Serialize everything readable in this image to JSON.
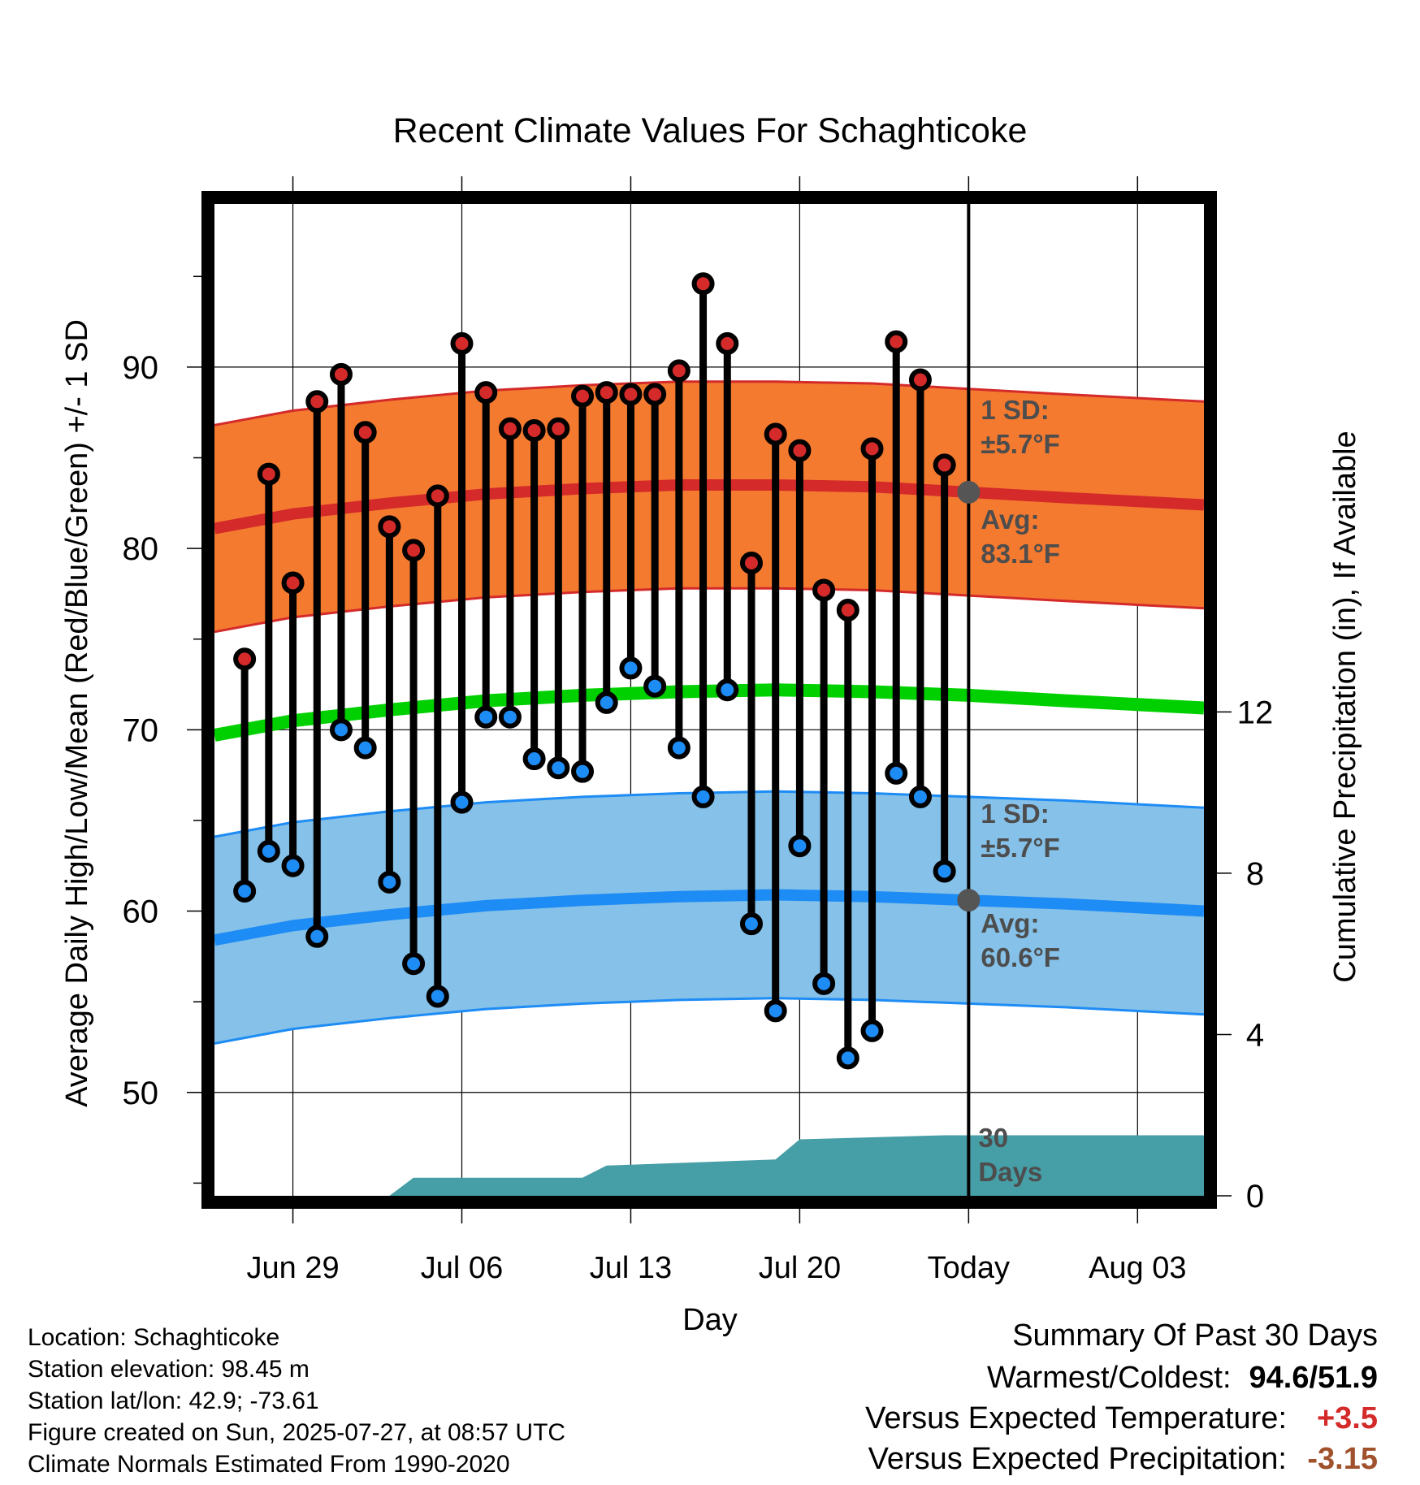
{
  "chart_data": {
    "type": "line",
    "title": "Recent Climate Values For Schaghticoke",
    "xlabel": "Day",
    "ylabel": "Average Daily High/Low/Mean (Red/Blue/Green) +/- 1 SD",
    "y2label": "Cumulative Precipitation (in), If Available",
    "ylim": [
      44.3,
      99
    ],
    "yticks": [
      50,
      60,
      70,
      80,
      90
    ],
    "y2lim": [
      0,
      24.6
    ],
    "y2ticks": [
      0,
      4,
      8,
      12
    ],
    "x_ticks": [
      {
        "date": "2025-06-29",
        "label": "Jun 29"
      },
      {
        "date": "2025-07-06",
        "label": "Jul 06"
      },
      {
        "date": "2025-07-13",
        "label": "Jul 13"
      },
      {
        "date": "2025-07-20",
        "label": "Jul 20"
      },
      {
        "date": "2025-07-27",
        "label": "Today"
      },
      {
        "date": "2025-08-03",
        "label": "Aug 03"
      }
    ],
    "xlim": [
      "2025-06-25T18:00",
      "2025-08-05T18:00"
    ],
    "today": "2025-07-27",
    "grid": true,
    "days": [
      "2025-06-27",
      "2025-06-28",
      "2025-06-29",
      "2025-06-30",
      "2025-07-01",
      "2025-07-02",
      "2025-07-03",
      "2025-07-04",
      "2025-07-05",
      "2025-07-06",
      "2025-07-07",
      "2025-07-08",
      "2025-07-09",
      "2025-07-10",
      "2025-07-11",
      "2025-07-12",
      "2025-07-13",
      "2025-07-14",
      "2025-07-15",
      "2025-07-16",
      "2025-07-17",
      "2025-07-18",
      "2025-07-19",
      "2025-07-20",
      "2025-07-21",
      "2025-07-22",
      "2025-07-23",
      "2025-07-24",
      "2025-07-25",
      "2025-07-26"
    ],
    "highs": [
      73.9,
      84.1,
      78.1,
      88.1,
      89.6,
      86.4,
      81.2,
      79.9,
      82.9,
      91.3,
      88.6,
      86.6,
      86.5,
      86.6,
      88.4,
      88.6,
      88.5,
      88.5,
      89.8,
      94.6,
      91.3,
      79.2,
      86.3,
      85.4,
      77.7,
      76.6,
      85.5,
      91.4,
      89.3,
      84.6
    ],
    "lows": [
      61.1,
      63.3,
      62.5,
      58.6,
      70.0,
      69.0,
      61.6,
      57.1,
      55.3,
      66.0,
      70.7,
      70.7,
      68.4,
      67.9,
      67.7,
      71.5,
      73.4,
      72.4,
      69.0,
      66.3,
      72.2,
      59.3,
      54.5,
      63.6,
      56.0,
      51.9,
      53.4,
      67.6,
      66.3,
      62.2
    ],
    "normals": {
      "x": [
        "2025-06-25T18:00",
        "2025-06-29",
        "2025-07-03",
        "2025-07-07",
        "2025-07-11",
        "2025-07-15",
        "2025-07-19",
        "2025-07-23",
        "2025-07-27",
        "2025-07-31",
        "2025-08-05T18:00"
      ],
      "high_avg": [
        81.1,
        81.9,
        82.5,
        83.0,
        83.3,
        83.5,
        83.5,
        83.4,
        83.1,
        82.8,
        82.4
      ],
      "low_avg": [
        58.4,
        59.2,
        59.8,
        60.3,
        60.6,
        60.8,
        60.9,
        60.8,
        60.6,
        60.4,
        60.0
      ],
      "mean_avg": [
        69.7,
        70.5,
        71.1,
        71.6,
        71.9,
        72.1,
        72.2,
        72.1,
        71.9,
        71.6,
        71.2
      ],
      "sd": 5.7
    },
    "precip_cumulative": {
      "x": [
        "2025-06-25T18:00",
        "2025-07-03",
        "2025-07-04",
        "2025-07-11",
        "2025-07-12",
        "2025-07-19",
        "2025-07-20",
        "2025-07-26",
        "2025-08-05T18:00"
      ],
      "y": [
        0,
        0,
        0.45,
        0.45,
        0.75,
        0.9,
        1.4,
        1.5,
        1.5
      ]
    },
    "annotations": {
      "high_sd": [
        "1 SD:",
        "±5.7°F"
      ],
      "high_avg": [
        "Avg:",
        "83.1°F"
      ],
      "low_sd": [
        "1 SD:",
        "±5.7°F"
      ],
      "low_avg": [
        "Avg:",
        "60.6°F"
      ],
      "days": [
        "30",
        "Days"
      ]
    },
    "colors": {
      "high_band": "#f47a30",
      "high_line": "#d42a2a",
      "low_band": "#85c1e8",
      "low_line": "#1e8cf5",
      "mean_line": "#00d000",
      "high_dot": "#d42a2a",
      "low_dot": "#1e8cf5",
      "precip": "#469ea6",
      "marker": "#555555"
    }
  },
  "info": {
    "location": "Location: Schaghticoke",
    "elevation": "Station elevation: 98.45 m",
    "latlon": "Station lat/lon: 42.9; -73.61",
    "created": "Figure created on Sun, 2025-07-27, at 08:57 UTC",
    "normals": "Climate Normals Estimated From 1990-2020"
  },
  "summary": {
    "heading": "Summary Of Past 30 Days",
    "warm_cold_label": "Warmest/Coldest:",
    "warm_cold_value": "94.6/51.9",
    "temp_label": "Versus Expected Temperature:",
    "temp_value": "+3.5",
    "temp_color": "#d42a2a",
    "precip_label": "Versus Expected Precipitation:",
    "precip_value": "-3.15",
    "precip_color": "#a0522d"
  }
}
